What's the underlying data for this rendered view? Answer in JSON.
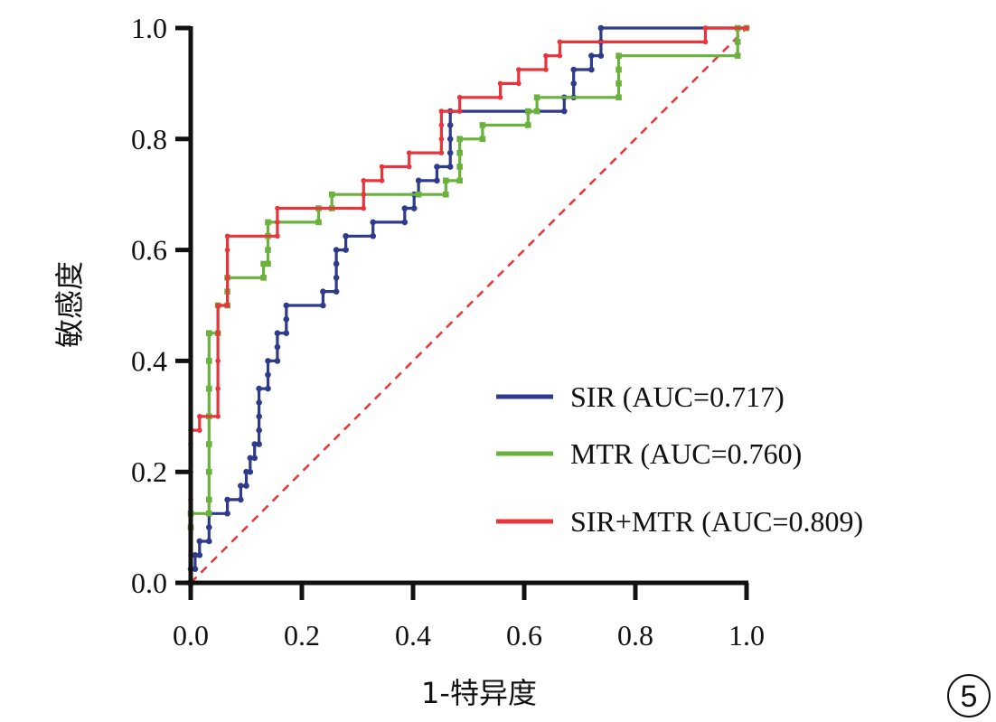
{
  "chart_data": {
    "type": "line",
    "title": "",
    "xlabel": "1-特异度",
    "ylabel": "敏感度",
    "xlim": [
      0,
      1
    ],
    "ylim": [
      0,
      1
    ],
    "xticks": [
      "0.0",
      "0.2",
      "0.4",
      "0.6",
      "0.8",
      "1.0"
    ],
    "yticks": [
      "0.0",
      "0.2",
      "0.4",
      "0.6",
      "0.8",
      "1.0"
    ],
    "legend_position": "bottom-right",
    "panel_label": "5",
    "reference_line": {
      "from": [
        0,
        0
      ],
      "to": [
        1,
        1
      ],
      "style": "dashed",
      "color": "#e8343a"
    },
    "series": [
      {
        "name": "SIR (AUC=0.717)",
        "color": "#2e3a8c",
        "points": [
          [
            0,
            0
          ],
          [
            0,
            0.025
          ],
          [
            0.008,
            0.025
          ],
          [
            0.008,
            0.05
          ],
          [
            0.016,
            0.05
          ],
          [
            0.016,
            0.075
          ],
          [
            0.033,
            0.075
          ],
          [
            0.033,
            0.1
          ],
          [
            0.033,
            0.125
          ],
          [
            0.066,
            0.125
          ],
          [
            0.066,
            0.15
          ],
          [
            0.09,
            0.15
          ],
          [
            0.09,
            0.175
          ],
          [
            0.1,
            0.175
          ],
          [
            0.1,
            0.2
          ],
          [
            0.107,
            0.2
          ],
          [
            0.107,
            0.225
          ],
          [
            0.115,
            0.225
          ],
          [
            0.115,
            0.25
          ],
          [
            0.123,
            0.25
          ],
          [
            0.123,
            0.275
          ],
          [
            0.123,
            0.3
          ],
          [
            0.123,
            0.325
          ],
          [
            0.123,
            0.35
          ],
          [
            0.139,
            0.35
          ],
          [
            0.139,
            0.375
          ],
          [
            0.139,
            0.4
          ],
          [
            0.156,
            0.4
          ],
          [
            0.156,
            0.425
          ],
          [
            0.156,
            0.45
          ],
          [
            0.172,
            0.45
          ],
          [
            0.172,
            0.475
          ],
          [
            0.172,
            0.5
          ],
          [
            0.238,
            0.5
          ],
          [
            0.238,
            0.525
          ],
          [
            0.262,
            0.525
          ],
          [
            0.262,
            0.55
          ],
          [
            0.262,
            0.575
          ],
          [
            0.262,
            0.6
          ],
          [
            0.279,
            0.6
          ],
          [
            0.279,
            0.625
          ],
          [
            0.328,
            0.625
          ],
          [
            0.328,
            0.65
          ],
          [
            0.385,
            0.65
          ],
          [
            0.385,
            0.675
          ],
          [
            0.402,
            0.675
          ],
          [
            0.402,
            0.7
          ],
          [
            0.41,
            0.7
          ],
          [
            0.41,
            0.725
          ],
          [
            0.443,
            0.725
          ],
          [
            0.443,
            0.75
          ],
          [
            0.467,
            0.75
          ],
          [
            0.467,
            0.775
          ],
          [
            0.467,
            0.8
          ],
          [
            0.467,
            0.825
          ],
          [
            0.467,
            0.85
          ],
          [
            0.672,
            0.85
          ],
          [
            0.672,
            0.875
          ],
          [
            0.689,
            0.875
          ],
          [
            0.689,
            0.9
          ],
          [
            0.689,
            0.925
          ],
          [
            0.721,
            0.925
          ],
          [
            0.721,
            0.95
          ],
          [
            0.738,
            0.95
          ],
          [
            0.738,
            0.975
          ],
          [
            0.738,
            1
          ],
          [
            1,
            1
          ]
        ]
      },
      {
        "name": "MTR (AUC=0.760)",
        "color": "#6ab23d",
        "points": [
          [
            0,
            0
          ],
          [
            0,
            0.1
          ],
          [
            0,
            0.125
          ],
          [
            0.033,
            0.125
          ],
          [
            0.033,
            0.15
          ],
          [
            0.033,
            0.2
          ],
          [
            0.033,
            0.25
          ],
          [
            0.033,
            0.3
          ],
          [
            0.033,
            0.35
          ],
          [
            0.033,
            0.4
          ],
          [
            0.033,
            0.45
          ],
          [
            0.049,
            0.45
          ],
          [
            0.049,
            0.5
          ],
          [
            0.066,
            0.5
          ],
          [
            0.066,
            0.525
          ],
          [
            0.066,
            0.55
          ],
          [
            0.131,
            0.55
          ],
          [
            0.131,
            0.575
          ],
          [
            0.139,
            0.575
          ],
          [
            0.139,
            0.6
          ],
          [
            0.139,
            0.625
          ],
          [
            0.139,
            0.65
          ],
          [
            0.23,
            0.65
          ],
          [
            0.23,
            0.675
          ],
          [
            0.254,
            0.675
          ],
          [
            0.254,
            0.7
          ],
          [
            0.41,
            0.7
          ],
          [
            0.459,
            0.7
          ],
          [
            0.459,
            0.725
          ],
          [
            0.484,
            0.725
          ],
          [
            0.484,
            0.75
          ],
          [
            0.484,
            0.775
          ],
          [
            0.484,
            0.8
          ],
          [
            0.525,
            0.8
          ],
          [
            0.525,
            0.825
          ],
          [
            0.607,
            0.825
          ],
          [
            0.607,
            0.85
          ],
          [
            0.623,
            0.85
          ],
          [
            0.623,
            0.875
          ],
          [
            0.77,
            0.875
          ],
          [
            0.77,
            0.9
          ],
          [
            0.77,
            0.925
          ],
          [
            0.77,
            0.95
          ],
          [
            0.984,
            0.95
          ],
          [
            0.984,
            0.975
          ],
          [
            0.984,
            1
          ],
          [
            1,
            1
          ]
        ]
      },
      {
        "name": "SIR+MTR (AUC=0.809)",
        "color": "#e8343a",
        "points": [
          [
            0,
            0
          ],
          [
            0,
            0.05
          ],
          [
            0,
            0.1
          ],
          [
            0,
            0.15
          ],
          [
            0,
            0.2
          ],
          [
            0,
            0.25
          ],
          [
            0,
            0.275
          ],
          [
            0.016,
            0.275
          ],
          [
            0.016,
            0.3
          ],
          [
            0.049,
            0.3
          ],
          [
            0.049,
            0.35
          ],
          [
            0.049,
            0.4
          ],
          [
            0.049,
            0.45
          ],
          [
            0.049,
            0.5
          ],
          [
            0.066,
            0.5
          ],
          [
            0.066,
            0.55
          ],
          [
            0.066,
            0.6
          ],
          [
            0.066,
            0.625
          ],
          [
            0.156,
            0.625
          ],
          [
            0.156,
            0.65
          ],
          [
            0.156,
            0.675
          ],
          [
            0.311,
            0.675
          ],
          [
            0.311,
            0.7
          ],
          [
            0.311,
            0.725
          ],
          [
            0.344,
            0.725
          ],
          [
            0.344,
            0.75
          ],
          [
            0.393,
            0.75
          ],
          [
            0.393,
            0.775
          ],
          [
            0.451,
            0.775
          ],
          [
            0.451,
            0.8
          ],
          [
            0.451,
            0.825
          ],
          [
            0.451,
            0.85
          ],
          [
            0.484,
            0.85
          ],
          [
            0.484,
            0.875
          ],
          [
            0.557,
            0.875
          ],
          [
            0.557,
            0.9
          ],
          [
            0.59,
            0.9
          ],
          [
            0.59,
            0.925
          ],
          [
            0.639,
            0.925
          ],
          [
            0.639,
            0.95
          ],
          [
            0.664,
            0.95
          ],
          [
            0.664,
            0.975
          ],
          [
            0.926,
            0.975
          ],
          [
            0.926,
            1
          ],
          [
            1,
            1
          ]
        ]
      }
    ]
  }
}
